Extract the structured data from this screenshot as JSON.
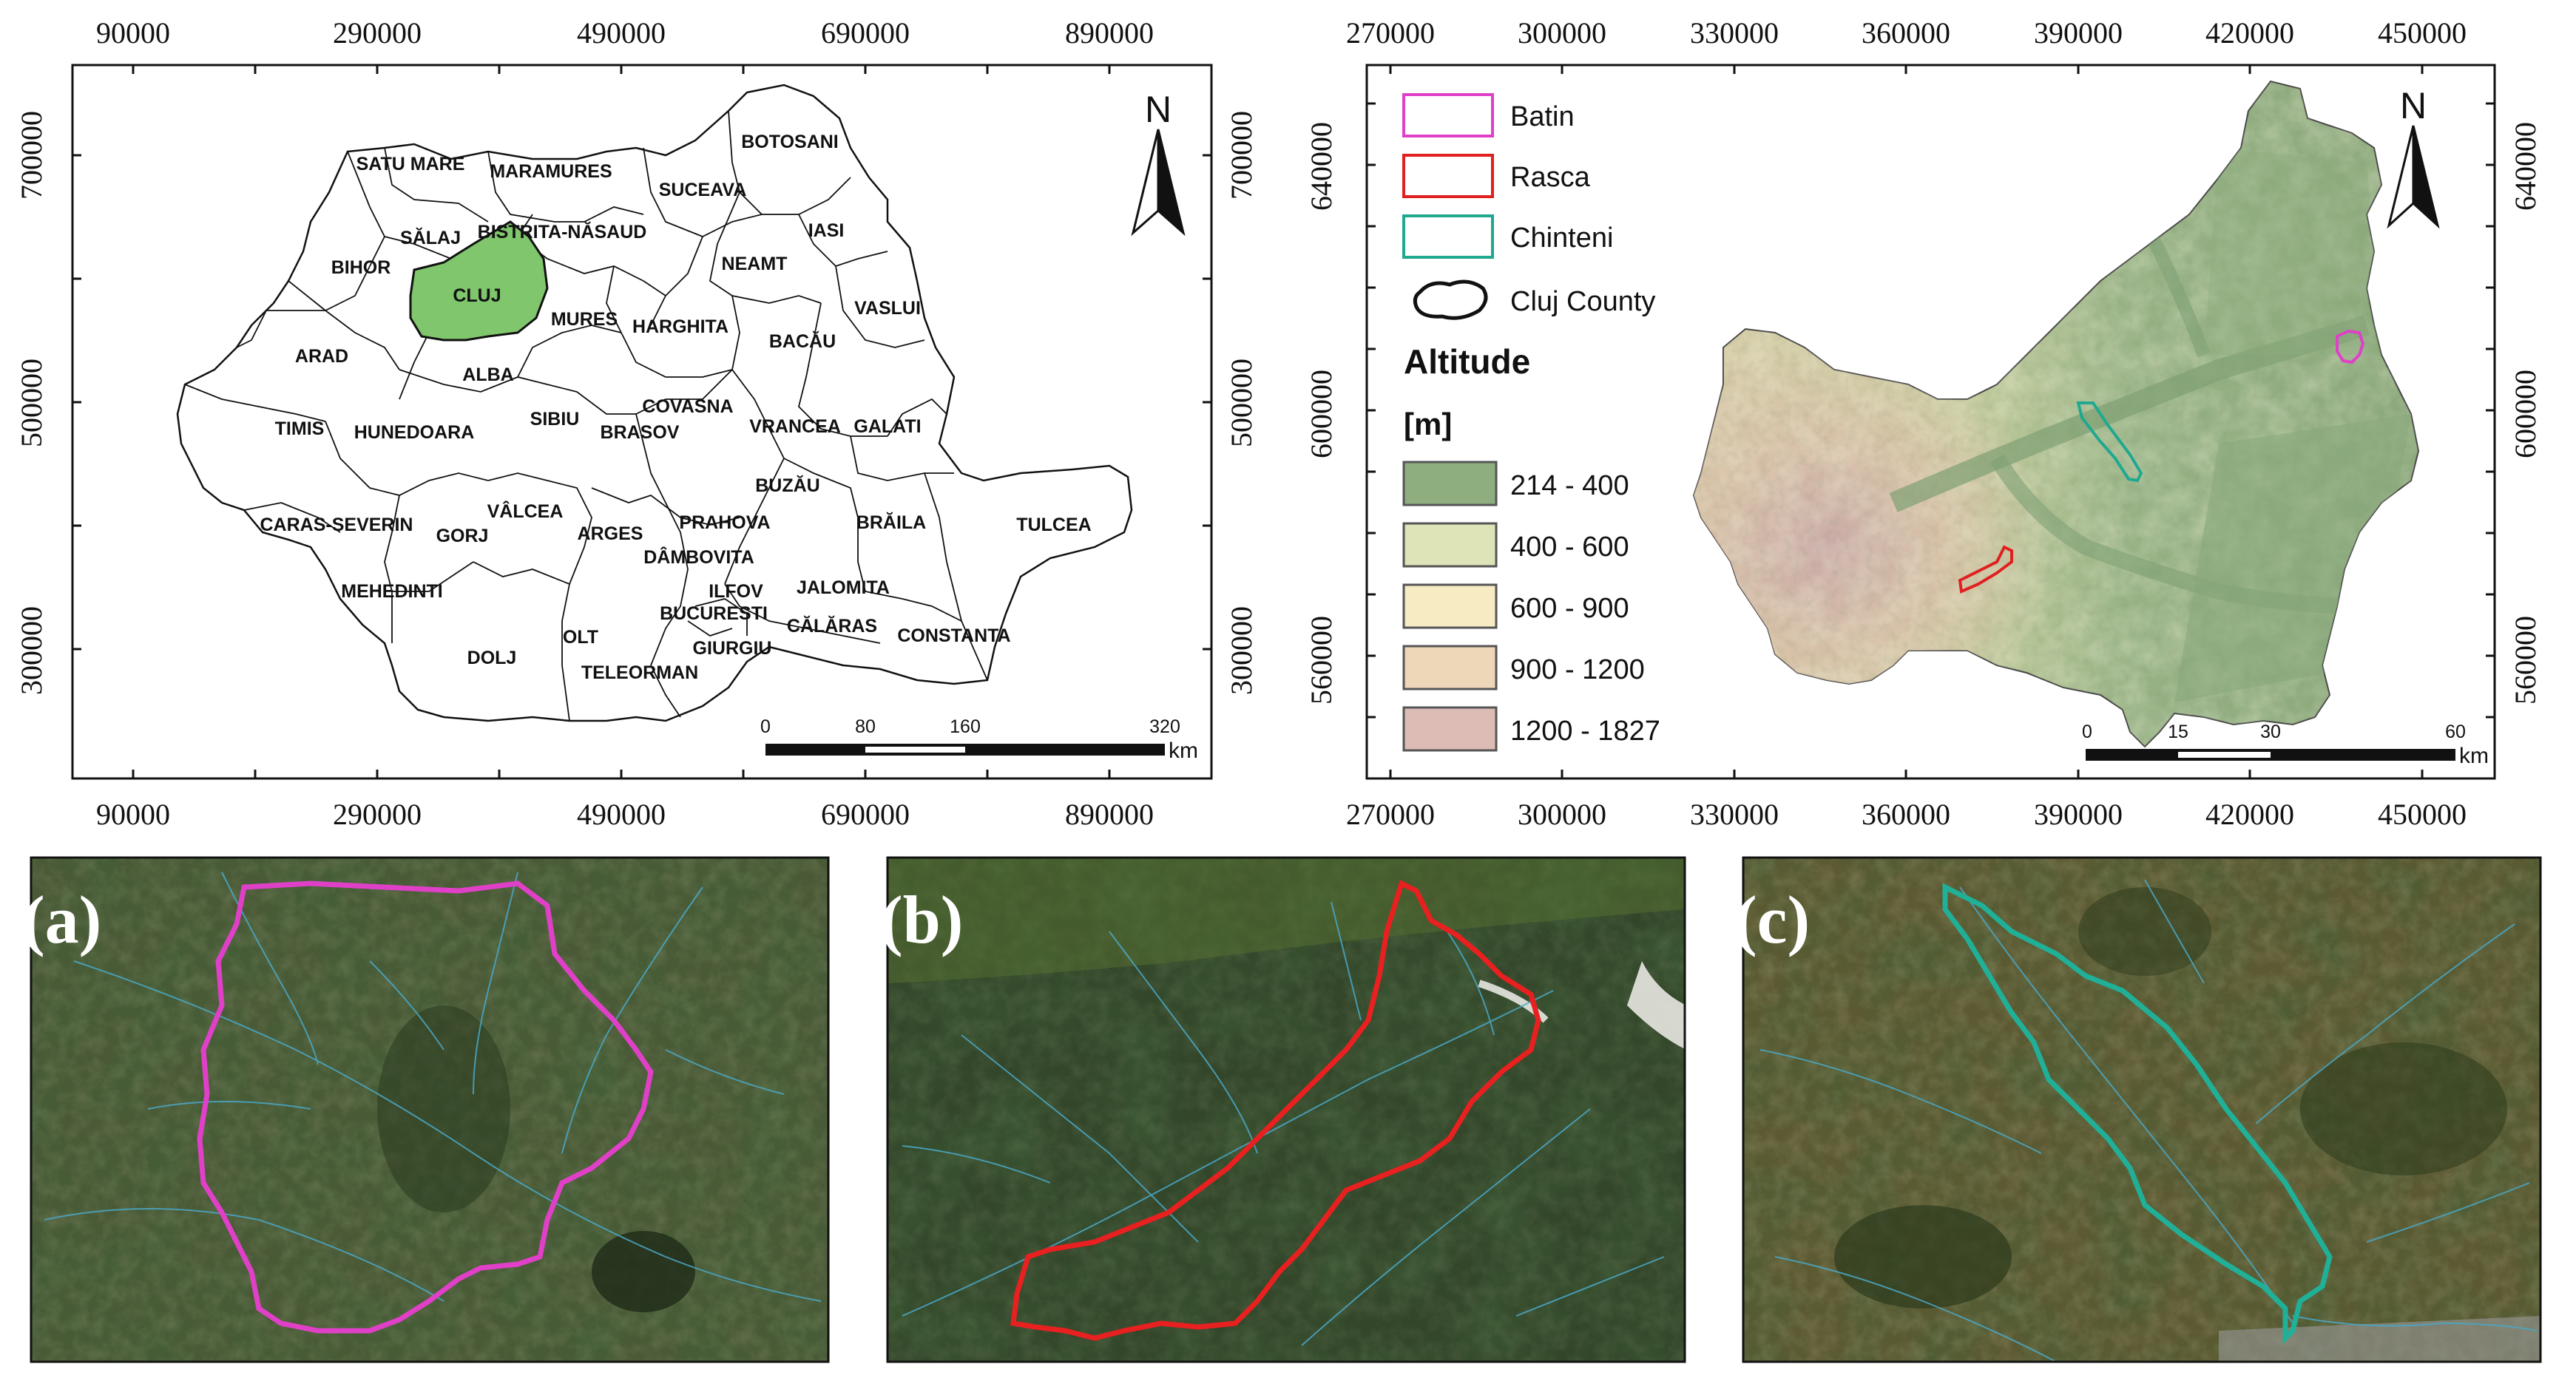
{
  "figure": {
    "romania_map": {
      "x_ticks": [
        "90000",
        "290000",
        "490000",
        "690000",
        "890000"
      ],
      "y_ticks": [
        "700000",
        "500000",
        "300000"
      ],
      "highlight_color": "#7fc66c",
      "counties": [
        "SATU MARE",
        "MARAMURES",
        "BOTOSANI",
        "SUCEAVA",
        "SĂLAJ",
        "BISTRITA-NĂSAUD",
        "IASI",
        "BIHOR",
        "CLUJ",
        "NEAMT",
        "MURES",
        "VASLUI",
        "HARGHITA",
        "BACĂU",
        "ARAD",
        "ALBA",
        "COVASNA",
        "SIBIU",
        "BRASOV",
        "VRANCEA",
        "GALATI",
        "TIMIS",
        "HUNEDOARA",
        "BUZĂU",
        "VÂLCEA",
        "ARGES",
        "PRAHOVA",
        "BRĂILA",
        "TULCEA",
        "CARAS-SEVERIN",
        "GORJ",
        "DÂMBOVITA",
        "MEHEDINTI",
        "ILFOV",
        "JALOMITA",
        "BUCURESTI",
        "CĂLĂRAS",
        "CONSTANTA",
        "OLT",
        "DOLJ",
        "GIURGIU",
        "TELEORMAN"
      ],
      "north_label": "N",
      "scale": {
        "ticks": [
          "0",
          "80",
          "160",
          "320"
        ],
        "unit": "km"
      }
    },
    "cluj_map": {
      "x_ticks": [
        "270000",
        "300000",
        "330000",
        "360000",
        "390000",
        "420000",
        "450000"
      ],
      "y_ticks": [
        "640000",
        "600000",
        "560000"
      ],
      "north_label": "N",
      "scale": {
        "ticks": [
          "0",
          "15",
          "30",
          "60"
        ],
        "unit": "km"
      },
      "legend": {
        "catchments": [
          {
            "label": "Batin",
            "color": "#e040c8"
          },
          {
            "label": "Rasca",
            "color": "#e02020"
          },
          {
            "label": "Chinteni",
            "color": "#20a890"
          },
          {
            "label": "Cluj County",
            "color": "#000000"
          }
        ],
        "altitude_title": "Altitude",
        "altitude_unit": "[m]",
        "classes": [
          {
            "label": "214 - 400",
            "color": "#8fae80"
          },
          {
            "label": "400 - 600",
            "color": "#dfe3b8"
          },
          {
            "label": "600 - 900",
            "color": "#f7ebc4"
          },
          {
            "label": "900 - 1200",
            "color": "#eed6b8"
          },
          {
            "label": "1200 - 1827",
            "color": "#dcbcb4"
          }
        ]
      }
    },
    "panels": [
      {
        "label": "(a)",
        "boundary_color": "#e040c8"
      },
      {
        "label": "(b)",
        "boundary_color": "#e82020"
      },
      {
        "label": "(c)",
        "boundary_color": "#20b098"
      }
    ]
  }
}
